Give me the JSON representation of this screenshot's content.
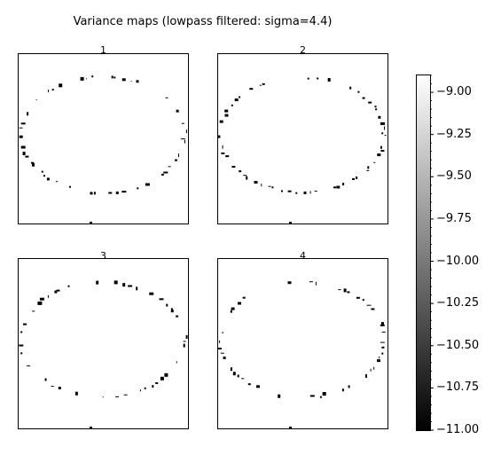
{
  "title": "Variance maps (lowpass filtered: sigma=4.4)",
  "chart_data": {
    "type": "heatmap",
    "title": "Variance maps (lowpass filtered: sigma=4.4)",
    "panels": [
      {
        "label": "1"
      },
      {
        "label": "2"
      },
      {
        "label": "3"
      },
      {
        "label": "4"
      }
    ],
    "colormap": "gray",
    "colorbar": {
      "vmin": -11.0,
      "vmax": -8.9,
      "ticks": [
        -9.0,
        -9.25,
        -9.5,
        -9.75,
        -10.0,
        -10.25,
        -10.5,
        -10.75,
        -11.0
      ],
      "tick_labels": [
        "−9.00",
        "−9.25",
        "−9.50",
        "−9.75",
        "−10.00",
        "−10.25",
        "−10.50",
        "−10.75",
        "−11.00"
      ]
    },
    "grid": false,
    "description_of_values": "mostly white (high variance, near -9) with a thin ring of black (low, near -11) speckles around an elliptical boundary"
  }
}
